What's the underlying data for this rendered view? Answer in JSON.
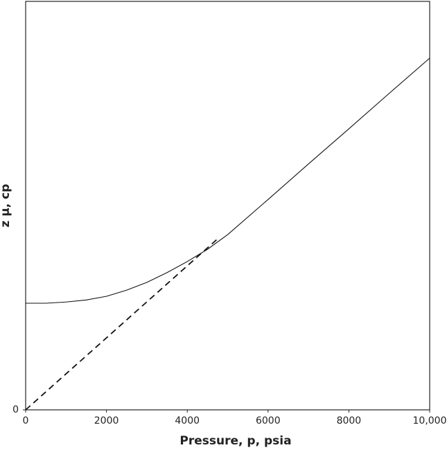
{
  "chart_data": {
    "type": "line",
    "xlabel": "Pressure, p, psia",
    "ylabel": "z μ, cp",
    "xlim": [
      0,
      10000
    ],
    "ylim": [
      0,
      1
    ],
    "xticks": [
      0,
      2000,
      4000,
      6000,
      8000,
      {
        "value": 10000,
        "label": "10,000"
      }
    ],
    "yticks": [
      0
    ],
    "series": [
      {
        "color": "#111111",
        "style": "solid",
        "x": [
          0,
          500,
          1000,
          1500,
          2000,
          2500,
          3000,
          3500,
          4000,
          4500,
          5000,
          6000,
          7000,
          8000,
          9000,
          10000
        ],
        "values": [
          0.261,
          0.261,
          0.264,
          0.269,
          0.278,
          0.293,
          0.312,
          0.336,
          0.363,
          0.393,
          0.429,
          0.515,
          0.602,
          0.688,
          0.775,
          0.861
        ]
      },
      {
        "color": "#111111",
        "style": "dashed",
        "x": [
          0,
          4800
        ],
        "values": [
          0,
          0.423
        ]
      }
    ]
  }
}
